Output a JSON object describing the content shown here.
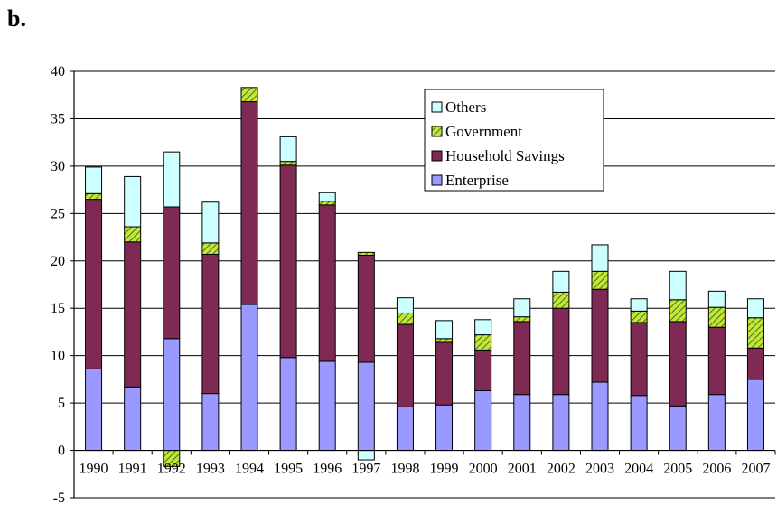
{
  "panel_label": "b.",
  "chart_data": {
    "type": "bar",
    "stacked": true,
    "categories": [
      "1990",
      "1991",
      "1992",
      "1993",
      "1994",
      "1995",
      "1996",
      "1997",
      "1998",
      "1999",
      "2000",
      "2001",
      "2002",
      "2003",
      "2004",
      "2005",
      "2006",
      "2007"
    ],
    "series": [
      {
        "name": "Enterprise",
        "color": "#9999ff",
        "values": [
          8.6,
          6.7,
          11.8,
          6.0,
          15.4,
          9.8,
          9.4,
          9.3,
          4.6,
          4.8,
          6.3,
          5.9,
          5.9,
          7.2,
          5.8,
          4.7,
          5.9,
          7.5
        ]
      },
      {
        "name": "Household Savings",
        "color": "#7f2a55",
        "values": [
          17.9,
          15.3,
          13.9,
          14.7,
          21.4,
          20.3,
          16.5,
          11.3,
          8.7,
          6.6,
          4.3,
          7.7,
          9.1,
          9.8,
          7.7,
          8.9,
          7.1,
          3.3
        ]
      },
      {
        "name": "Government",
        "color": "#c6e43a",
        "values": [
          0.6,
          1.6,
          -1.7,
          1.2,
          1.5,
          0.4,
          0.4,
          0.3,
          1.2,
          0.4,
          1.6,
          0.5,
          1.7,
          1.9,
          1.2,
          2.3,
          2.1,
          3.2
        ]
      },
      {
        "name": "Others",
        "color": "#ccffff",
        "values": [
          2.8,
          5.3,
          5.8,
          4.3,
          0.0,
          2.6,
          0.9,
          -1.0,
          1.6,
          1.9,
          1.6,
          1.9,
          2.2,
          2.8,
          1.3,
          3.0,
          1.7,
          2.0
        ]
      }
    ],
    "ylim": [
      -5,
      40
    ],
    "yticks": [
      "-5",
      "0",
      "5",
      "10",
      "15",
      "20",
      "25",
      "30",
      "35",
      "40"
    ],
    "ytick_values": [
      -5,
      0,
      5,
      10,
      15,
      20,
      25,
      30,
      35,
      40
    ],
    "grid": true,
    "legend_placement": "top-center",
    "legend_order": [
      "Others",
      "Government",
      "Household Savings",
      "Enterprise"
    ],
    "title": "",
    "xlabel": "",
    "ylabel": ""
  }
}
